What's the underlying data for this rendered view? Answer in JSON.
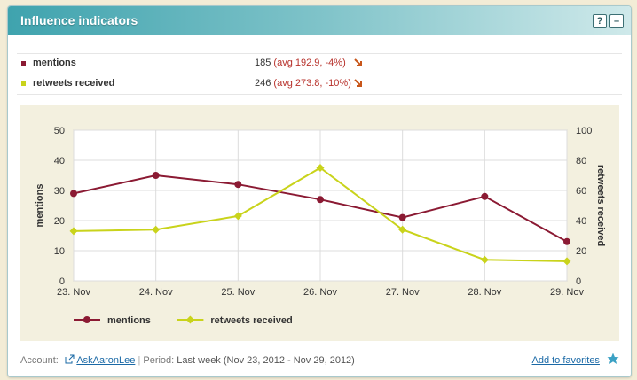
{
  "widget": {
    "title": "Influence indicators",
    "help_label": "?",
    "minimize_label": "–"
  },
  "metrics": [
    {
      "name": "mentions",
      "value": "185",
      "avg": "(avg 192.9, -4%)",
      "color": "#8b1a33"
    },
    {
      "name": "retweets received",
      "value": "246",
      "avg": "(avg 273.8, -10%)",
      "color": "#c9d31b"
    }
  ],
  "chart_data": {
    "type": "line",
    "categories": [
      "23. Nov",
      "24. Nov",
      "25. Nov",
      "26. Nov",
      "27. Nov",
      "28. Nov",
      "29. Nov"
    ],
    "series": [
      {
        "name": "mentions",
        "axis": "left",
        "color": "#8b1a33",
        "values": [
          29,
          35,
          32,
          27,
          21,
          28,
          13
        ]
      },
      {
        "name": "retweets received",
        "axis": "right",
        "color": "#c9d31b",
        "values": [
          33,
          34,
          43,
          75,
          34,
          14,
          13
        ]
      }
    ],
    "y_left": {
      "label": "mentions",
      "range": [
        0,
        50
      ],
      "ticks": [
        "0",
        "10",
        "20",
        "30",
        "40",
        "50"
      ]
    },
    "y_right": {
      "label": "retweets received",
      "range": [
        0,
        100
      ],
      "ticks": [
        "0",
        "20",
        "40",
        "60",
        "80",
        "100"
      ]
    },
    "legend": "bottom-left",
    "grid": true
  },
  "footer": {
    "account_label": "Account:",
    "account_name": "AskAaronLee",
    "period_label": "Period:",
    "period_value": "Last week (Nov 23, 2012 - Nov 29, 2012)",
    "favorites_label": "Add to favorites"
  }
}
